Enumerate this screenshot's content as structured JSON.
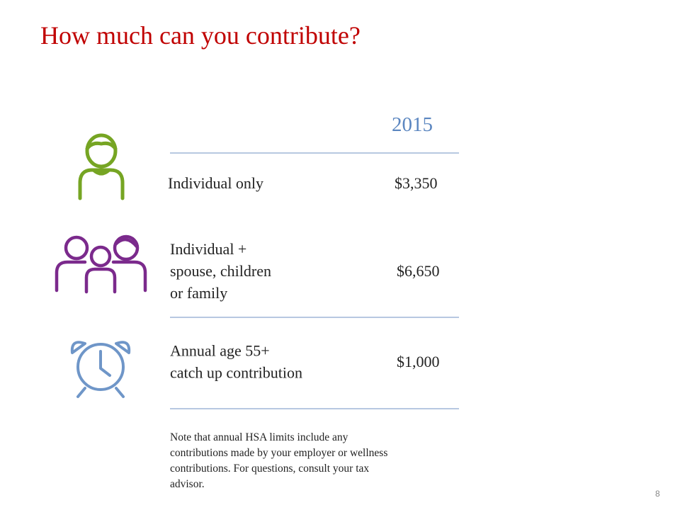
{
  "header": {
    "title": "How much can you contribute?"
  },
  "table": {
    "column_header": "2015",
    "rows": [
      {
        "label": [
          "Individual only"
        ],
        "amount": "$3,350"
      },
      {
        "label": [
          "Individual +",
          "spouse, children",
          "or family"
        ],
        "amount": "$6,650"
      },
      {
        "label": [
          "Annual age 55+",
          "catch up contribution"
        ],
        "amount": "$1,000"
      }
    ]
  },
  "note": [
    "Note that annual HSA limits include any",
    "contributions made by your employer or wellness",
    "contributions. For questions, consult your tax",
    "advisor."
  ],
  "page_number": "8"
}
